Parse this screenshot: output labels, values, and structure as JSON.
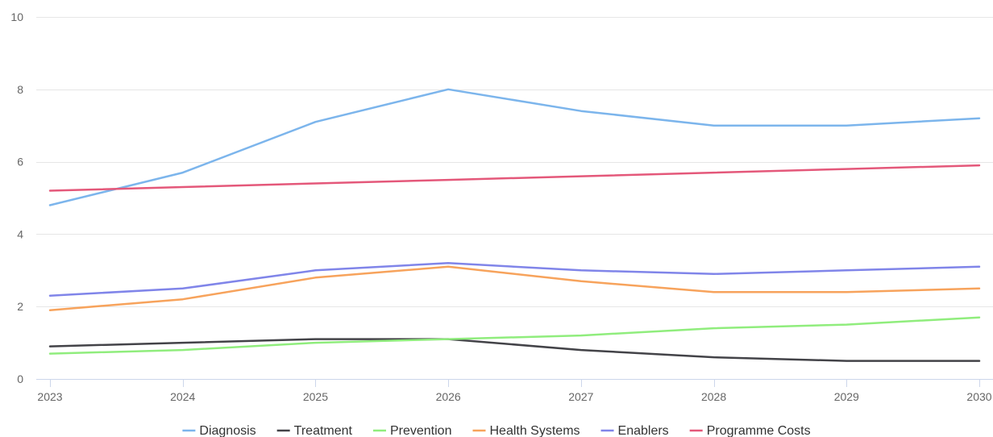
{
  "chart_data": {
    "type": "line",
    "title": "",
    "xlabel": "",
    "ylabel": "",
    "x": [
      "2023",
      "2024",
      "2025",
      "2026",
      "2027",
      "2028",
      "2029",
      "2030"
    ],
    "ylim": [
      0,
      10
    ],
    "yticks": [
      "0",
      "2",
      "4",
      "6",
      "8",
      "10"
    ],
    "grid": true,
    "legend_position": "bottom",
    "series": [
      {
        "name": "Diagnosis",
        "color": "#7cb5ec",
        "values": [
          4.8,
          5.7,
          7.1,
          8.0,
          7.4,
          7.0,
          7.0,
          7.2
        ]
      },
      {
        "name": "Treatment",
        "color": "#434348",
        "values": [
          0.9,
          1.0,
          1.1,
          1.1,
          0.8,
          0.6,
          0.5,
          0.5
        ]
      },
      {
        "name": "Prevention",
        "color": "#90ed7d",
        "values": [
          0.7,
          0.8,
          1.0,
          1.1,
          1.2,
          1.4,
          1.5,
          1.7
        ]
      },
      {
        "name": "Health Systems",
        "color": "#f7a35c",
        "values": [
          1.9,
          2.2,
          2.8,
          3.1,
          2.7,
          2.4,
          2.4,
          2.5
        ]
      },
      {
        "name": "Enablers",
        "color": "#8085e9",
        "values": [
          2.3,
          2.5,
          3.0,
          3.2,
          3.0,
          2.9,
          3.0,
          3.1
        ]
      },
      {
        "name": "Programme Costs",
        "color": "#e4587a",
        "values": [
          5.2,
          5.3,
          5.4,
          5.5,
          5.6,
          5.7,
          5.8,
          5.9
        ]
      }
    ]
  }
}
